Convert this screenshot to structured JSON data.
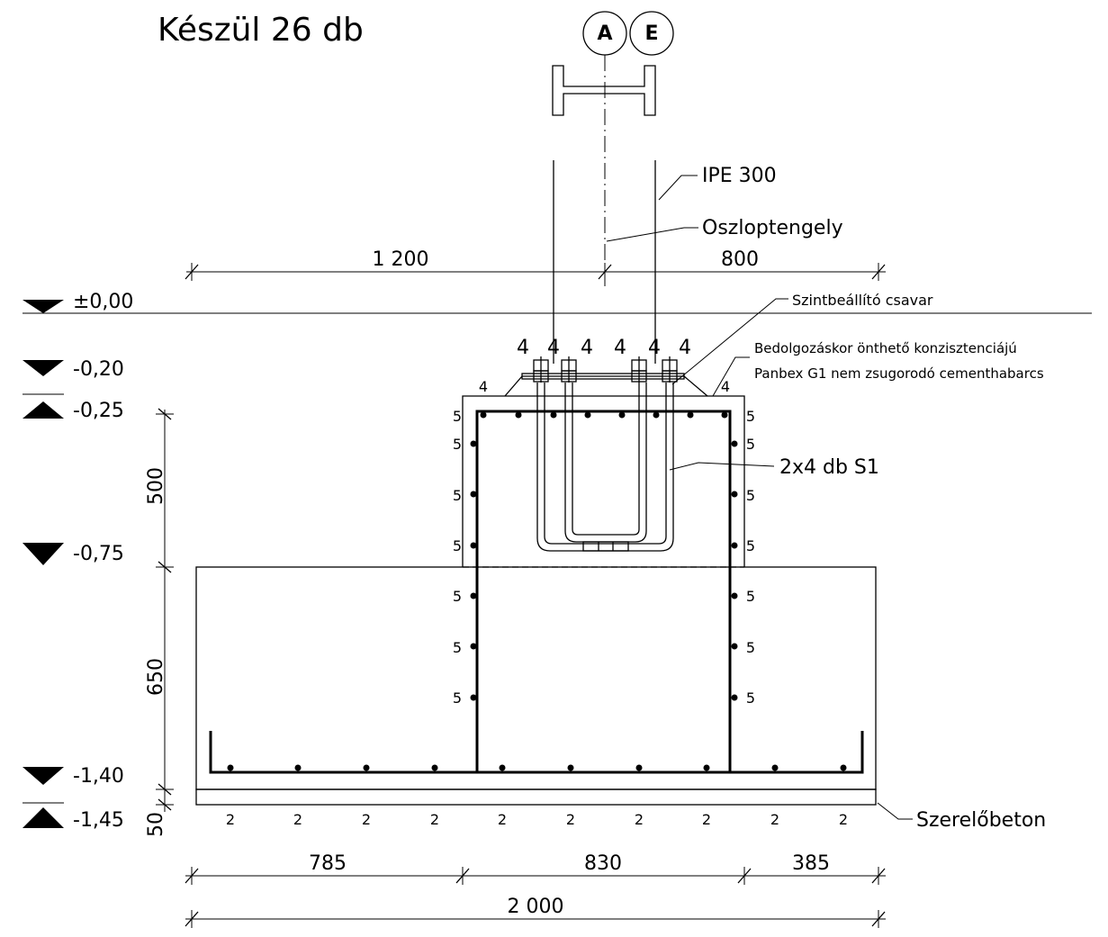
{
  "title": "Készül 26 db",
  "grid_markers": [
    "A",
    "E"
  ],
  "callouts": {
    "profile": "IPE 300",
    "axis": "Oszloptengely",
    "screw": "Szintbeállító csavar",
    "grout_line1": "Bedolgozáskor önthető konzisztenciájú",
    "grout_line2": "Panbex G1 nem zsugorodó cementhabarcs",
    "bolts": "2x4 db S1",
    "blinding": "Szerelőbeton"
  },
  "levels": [
    "±0,00",
    "-0,20",
    "-0,25",
    "-0,75",
    "-1,40",
    "-1,45"
  ],
  "dimensions": {
    "top": [
      "1 200",
      "800"
    ],
    "vertical": [
      "500",
      "650",
      "50"
    ],
    "bottom": [
      "785",
      "830",
      "385"
    ],
    "total": "2 000"
  },
  "bar_marks": {
    "bolt": "4",
    "pedestal": "5",
    "footing": "2"
  }
}
